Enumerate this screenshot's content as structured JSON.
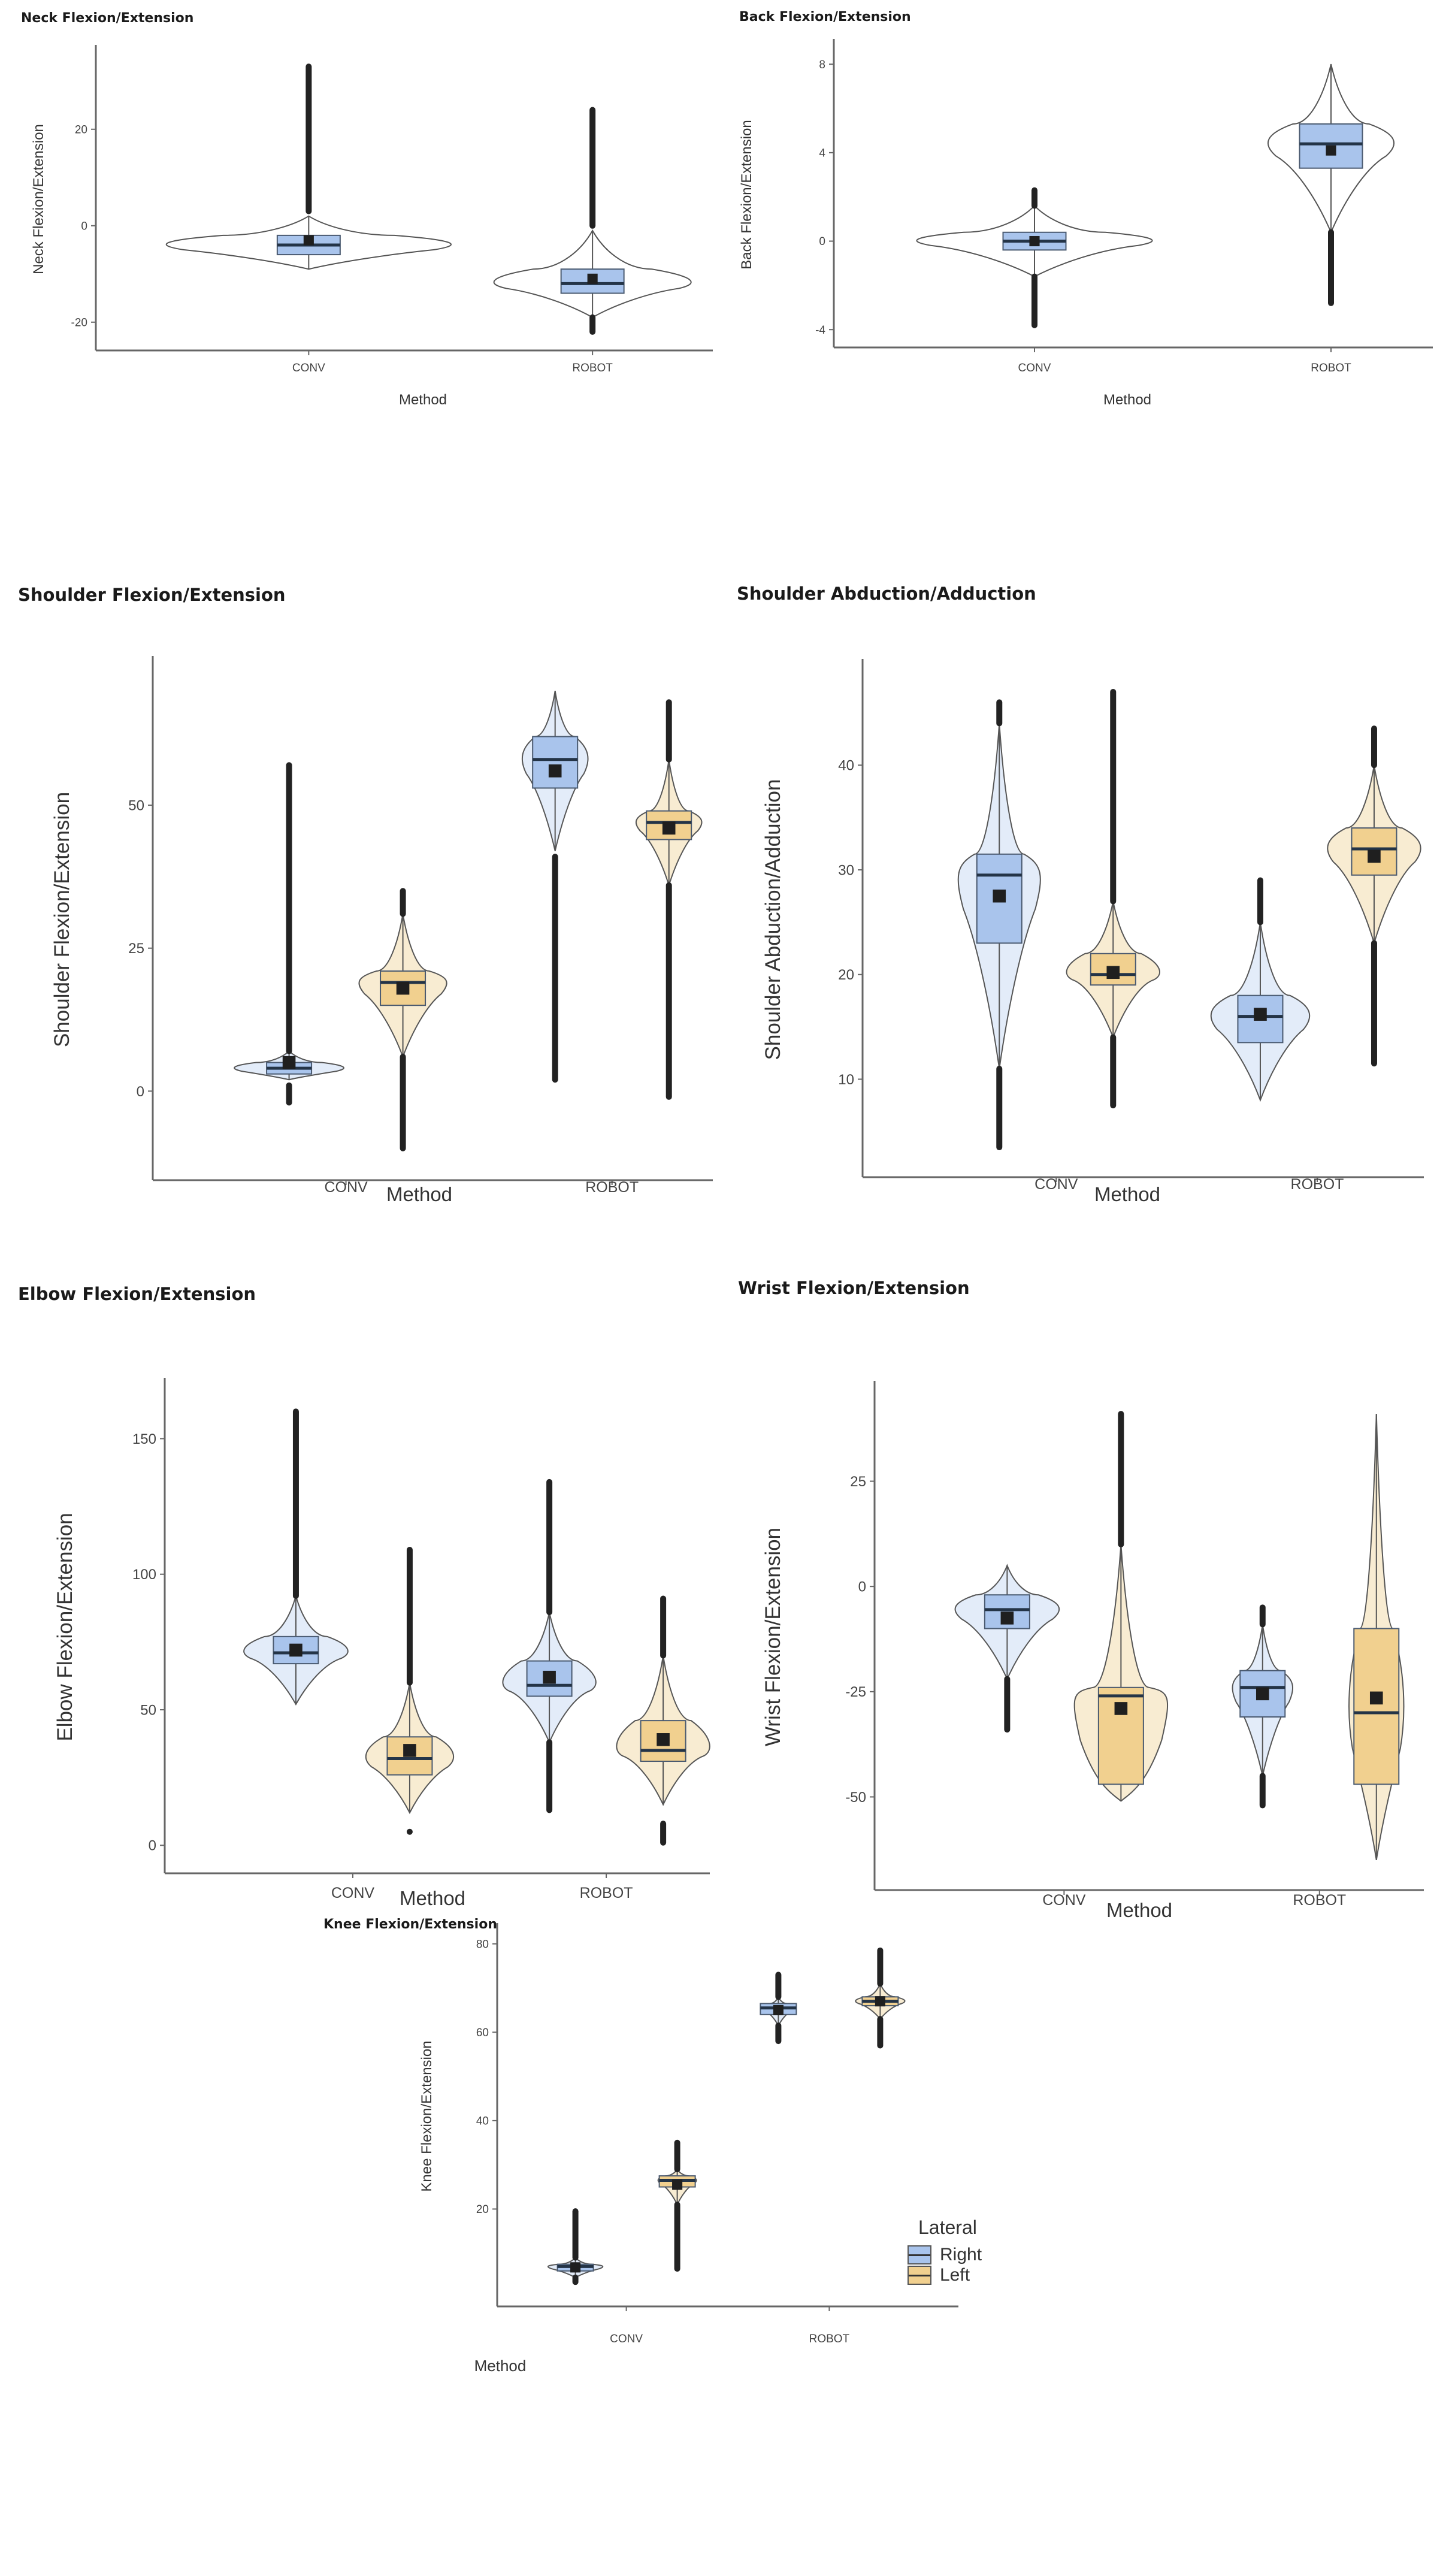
{
  "figure": {
    "legend": {
      "title": "Lateral",
      "items": [
        {
          "label": "Right",
          "fill": "#a9c4ec",
          "violin_fill": "#e3ecf9"
        },
        {
          "label": "Left",
          "fill": "#f1d08f",
          "violin_fill": "#f8ecd2"
        }
      ]
    },
    "colors": {
      "right_box": "#a9c4ec",
      "right_violin": "#e3ecf9",
      "left_box": "#f1d08f",
      "left_violin": "#f8ecd2",
      "outline": "#555555",
      "outlier": "#222222",
      "mean_marker": "#1f1f1f",
      "axis": "#666666"
    }
  },
  "chart_data": [
    {
      "id": "neck",
      "type": "violin_box",
      "title": "Neck Flexion/Extension",
      "xlabel": "Method",
      "ylabel": "Neck Flexion/Extension",
      "categories": [
        "CONV",
        "ROBOT"
      ],
      "yticks": [
        -20,
        0,
        20
      ],
      "ylim": [
        -24,
        35
      ],
      "series": [
        {
          "name": "Right",
          "groups": [
            {
              "category": "CONV",
              "q1": -6,
              "median": -4,
              "q3": -2,
              "mean": -3,
              "whisker_low": -9,
              "whisker_high": 2,
              "outliers_low": null,
              "outliers_high": [
                3,
                33
              ]
            },
            {
              "category": "ROBOT",
              "q1": -14,
              "median": -12,
              "q3": -9,
              "mean": -11,
              "whisker_low": -19,
              "whisker_high": -1,
              "outliers_low": [
                -22,
                -19
              ],
              "outliers_high": [
                0,
                24
              ]
            }
          ]
        }
      ]
    },
    {
      "id": "back",
      "type": "violin_box",
      "title": "Back Flexion/Extension",
      "xlabel": "Method",
      "ylabel": "Back Flexion/Extension",
      "categories": [
        "CONV",
        "ROBOT"
      ],
      "yticks": [
        -4,
        0,
        4,
        8
      ],
      "ylim": [
        -4.4,
        8.6
      ],
      "series": [
        {
          "name": "Right",
          "groups": [
            {
              "category": "CONV",
              "q1": -0.4,
              "median": 0,
              "q3": 0.4,
              "mean": 0,
              "whisker_low": -1.6,
              "whisker_high": 1.6,
              "outliers_low": [
                -3.8,
                -1.6
              ],
              "outliers_high": [
                1.6,
                2.3
              ]
            },
            {
              "category": "ROBOT",
              "q1": 3.3,
              "median": 4.4,
              "q3": 5.3,
              "mean": 4.1,
              "whisker_low": 0.4,
              "whisker_high": 8,
              "outliers_low": [
                -2.8,
                0.4
              ],
              "outliers_high": null
            }
          ]
        }
      ]
    },
    {
      "id": "shoulder_flex",
      "type": "violin_box",
      "title": "Shoulder Flexion/Extension",
      "xlabel": "Method",
      "ylabel": "Shoulder Flexion/Extension",
      "categories": [
        "CONV",
        "ROBOT"
      ],
      "yticks": [
        0,
        25,
        50
      ],
      "ylim": [
        -14,
        74
      ],
      "series": [
        {
          "name": "Right",
          "groups": [
            {
              "category": "CONV",
              "q1": 3,
              "median": 4,
              "q3": 5,
              "mean": 5,
              "whisker_low": 2,
              "whisker_high": 7,
              "outliers_low": [
                -2,
                1
              ],
              "outliers_high": [
                7,
                57
              ]
            },
            {
              "category": "ROBOT",
              "q1": 53,
              "median": 58,
              "q3": 62,
              "mean": 56,
              "whisker_low": 42,
              "whisker_high": 70,
              "outliers_low": [
                2,
                41
              ],
              "outliers_high": null
            }
          ]
        },
        {
          "name": "Left",
          "groups": [
            {
              "category": "CONV",
              "q1": 15,
              "median": 19,
              "q3": 21,
              "mean": 18,
              "whisker_low": 6,
              "whisker_high": 31,
              "outliers_low": [
                -10,
                6
              ],
              "outliers_high": [
                31,
                35
              ]
            },
            {
              "category": "ROBOT",
              "q1": 44,
              "median": 47,
              "q3": 49,
              "mean": 46,
              "whisker_low": 36,
              "whisker_high": 58,
              "outliers_low": [
                -1,
                36
              ],
              "outliers_high": [
                58,
                68
              ]
            }
          ]
        }
      ]
    },
    {
      "id": "shoulder_abd",
      "type": "violin_box",
      "title": "Shoulder Abduction/Adduction",
      "xlabel": "Method",
      "ylabel": "Shoulder Abduction/Adduction",
      "categories": [
        "CONV",
        "ROBOT"
      ],
      "yticks": [
        10,
        20,
        30,
        40
      ],
      "ylim": [
        1.5,
        49
      ],
      "series": [
        {
          "name": "Right",
          "groups": [
            {
              "category": "CONV",
              "q1": 23,
              "median": 29.5,
              "q3": 31.5,
              "mean": 27.5,
              "whisker_low": 11,
              "whisker_high": 44,
              "outliers_low": [
                3.5,
                11
              ],
              "outliers_high": [
                44,
                46
              ]
            },
            {
              "category": "ROBOT",
              "q1": 13.5,
              "median": 16,
              "q3": 18,
              "mean": 16.2,
              "whisker_low": 8,
              "whisker_high": 25,
              "outliers_low": null,
              "outliers_high": [
                25,
                29
              ]
            }
          ]
        },
        {
          "name": "Left",
          "groups": [
            {
              "category": "CONV",
              "q1": 19,
              "median": 20,
              "q3": 22,
              "mean": 20.2,
              "whisker_low": 14,
              "whisker_high": 27,
              "outliers_low": [
                7.5,
                14
              ],
              "outliers_high": [
                27,
                47
              ]
            },
            {
              "category": "ROBOT",
              "q1": 29.5,
              "median": 32,
              "q3": 34,
              "mean": 31.3,
              "whisker_low": 23,
              "whisker_high": 40,
              "outliers_low": [
                11.5,
                23
              ],
              "outliers_high": [
                40,
                43.5
              ]
            }
          ]
        }
      ]
    },
    {
      "id": "elbow",
      "type": "violin_box",
      "title": "Elbow Flexion/Extension",
      "xlabel": "Method",
      "ylabel": "Elbow Flexion/Extension",
      "categories": [
        "CONV",
        "ROBOT"
      ],
      "yticks": [
        0,
        50,
        100,
        150
      ],
      "ylim": [
        -7,
        168
      ],
      "series": [
        {
          "name": "Right",
          "groups": [
            {
              "category": "CONV",
              "q1": 67,
              "median": 71,
              "q3": 77,
              "mean": 72,
              "whisker_low": 52,
              "whisker_high": 92,
              "outliers_low": null,
              "outliers_high": [
                92,
                160
              ]
            },
            {
              "category": "ROBOT",
              "q1": 55,
              "median": 59,
              "q3": 68,
              "mean": 62,
              "whisker_low": 38,
              "whisker_high": 86,
              "outliers_low": [
                13,
                38
              ],
              "outliers_high": [
                86,
                134
              ]
            }
          ]
        },
        {
          "name": "Left",
          "groups": [
            {
              "category": "CONV",
              "q1": 26,
              "median": 32,
              "q3": 40,
              "mean": 35,
              "whisker_low": 12,
              "whisker_high": 60,
              "outliers_low": [
                5,
                5
              ],
              "outliers_high": [
                60,
                109
              ]
            },
            {
              "category": "ROBOT",
              "q1": 31,
              "median": 35,
              "q3": 46,
              "mean": 39,
              "whisker_low": 15,
              "whisker_high": 70,
              "outliers_low": [
                1,
                8
              ],
              "outliers_high": [
                70,
                91
              ]
            }
          ]
        }
      ]
    },
    {
      "id": "wrist",
      "type": "violin_box",
      "title": "Wrist Flexion/Extension",
      "xlabel": "Method",
      "ylabel": "Wrist Flexion/Extension",
      "categories": [
        "CONV",
        "ROBOT"
      ],
      "yticks": [
        -50,
        -25,
        0,
        25
      ],
      "ylim": [
        -70,
        46
      ],
      "series": [
        {
          "name": "Right",
          "groups": [
            {
              "category": "CONV",
              "q1": -10,
              "median": -5.5,
              "q3": -2,
              "mean": -7.5,
              "whisker_low": -22,
              "whisker_high": 5,
              "outliers_low": [
                -34,
                -22
              ],
              "outliers_high": null
            },
            {
              "category": "ROBOT",
              "q1": -31,
              "median": -24,
              "q3": -20,
              "mean": -25.5,
              "whisker_low": -45,
              "whisker_high": -9,
              "outliers_low": [
                -52,
                -45
              ],
              "outliers_high": [
                -9,
                -5
              ]
            }
          ]
        },
        {
          "name": "Left",
          "groups": [
            {
              "category": "CONV",
              "q1": -47,
              "median": -26,
              "q3": -24,
              "mean": -29,
              "whisker_low": -51,
              "whisker_high": 10,
              "outliers_low": null,
              "outliers_high": [
                10,
                41
              ]
            },
            {
              "category": "ROBOT",
              "q1": -47,
              "median": -30,
              "q3": -10,
              "mean": -26.5,
              "whisker_low": -65,
              "whisker_high": 41,
              "outliers_low": null,
              "outliers_high": null
            }
          ]
        }
      ]
    },
    {
      "id": "knee",
      "type": "violin_box",
      "title": "Knee Flexion/Extension",
      "xlabel": "Method",
      "ylabel": "Knee Flexion/Extension",
      "categories": [
        "CONV",
        "ROBOT"
      ],
      "yticks": [
        20,
        40,
        60,
        80
      ],
      "ylim": [
        0,
        82
      ],
      "series": [
        {
          "name": "Right",
          "groups": [
            {
              "category": "CONV",
              "q1": 6,
              "median": 7,
              "q3": 7.5,
              "mean": 6.8,
              "whisker_low": 4.5,
              "whisker_high": 9,
              "outliers_low": [
                3.5,
                4.5
              ],
              "outliers_high": [
                9,
                19.5
              ]
            },
            {
              "category": "ROBOT",
              "q1": 64,
              "median": 65.5,
              "q3": 66.5,
              "mean": 65,
              "whisker_low": 61.5,
              "whisker_high": 68,
              "outliers_low": [
                58,
                61.5
              ],
              "outliers_high": [
                68,
                73
              ]
            }
          ]
        },
        {
          "name": "Left",
          "groups": [
            {
              "category": "CONV",
              "q1": 25,
              "median": 26.5,
              "q3": 27.5,
              "mean": 25.5,
              "whisker_low": 21,
              "whisker_high": 29,
              "outliers_low": [
                6.5,
                21
              ],
              "outliers_high": [
                29,
                35
              ]
            },
            {
              "category": "ROBOT",
              "q1": 66,
              "median": 67,
              "q3": 68,
              "mean": 67,
              "whisker_low": 63,
              "whisker_high": 71,
              "outliers_low": [
                57,
                63
              ],
              "outliers_high": [
                71,
                78.5
              ]
            }
          ]
        }
      ]
    }
  ]
}
